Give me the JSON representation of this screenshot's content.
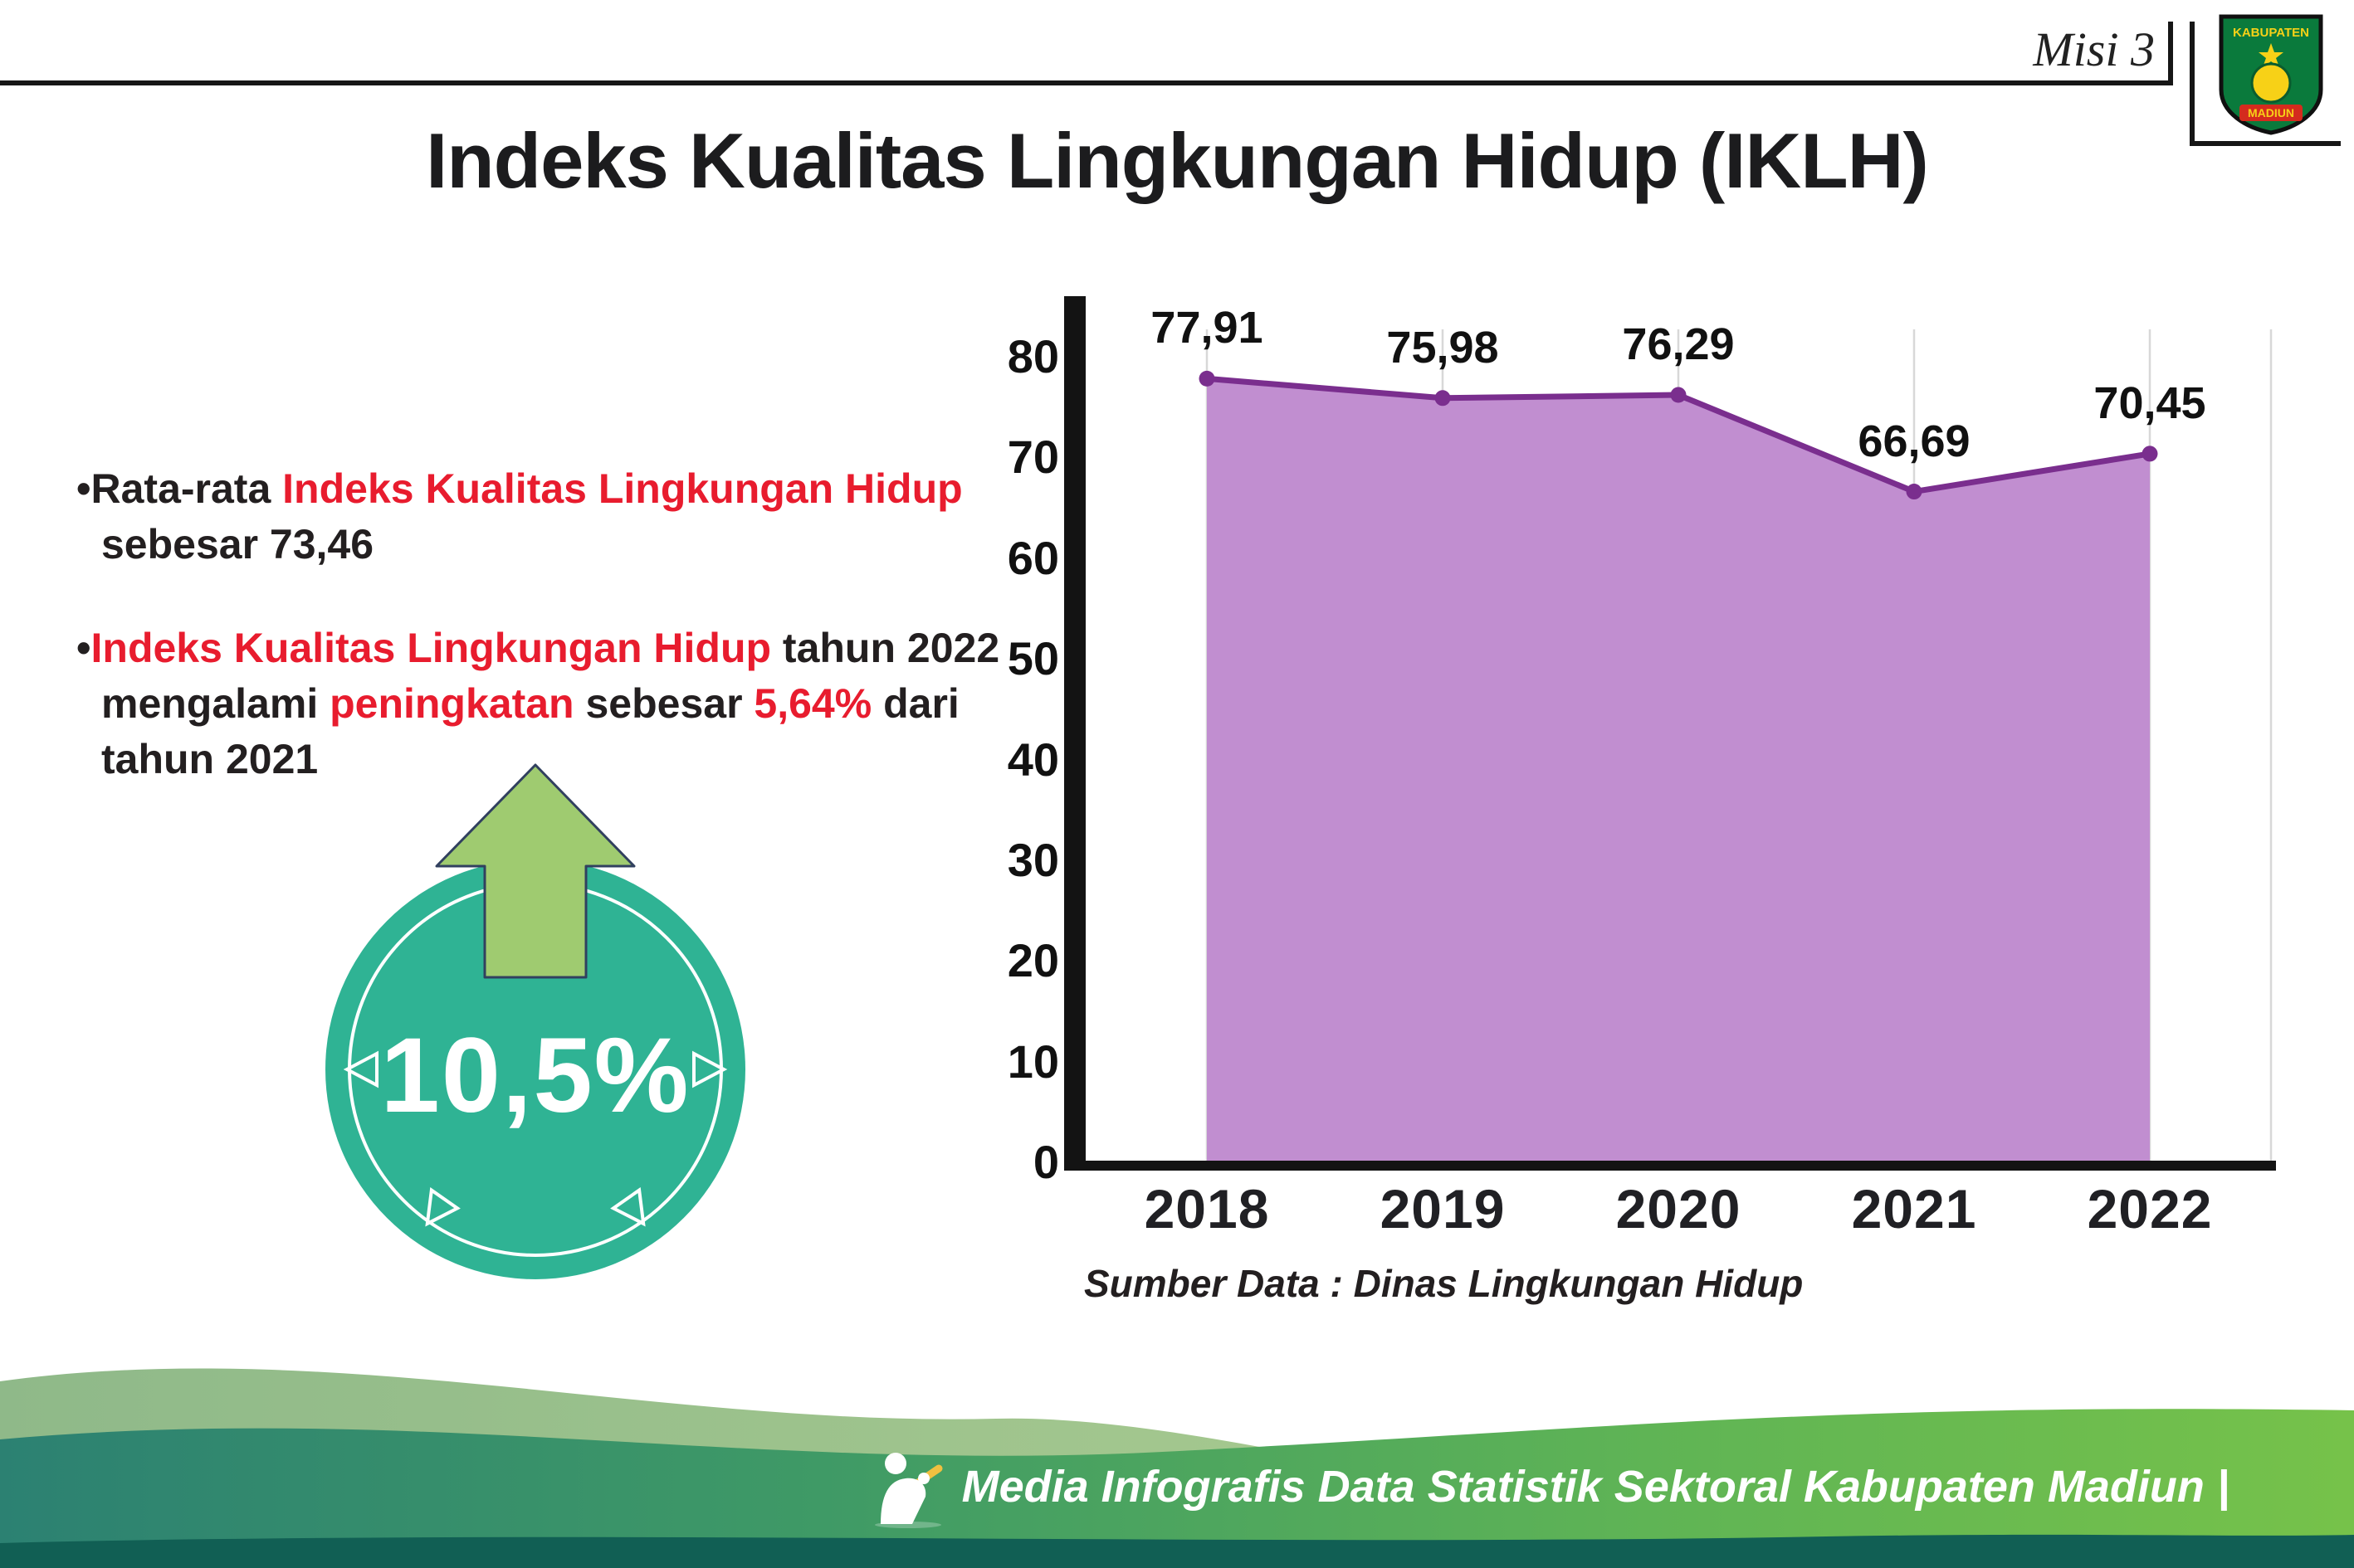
{
  "header": {
    "misi": "Misi 3",
    "title": "Indeks Kualitas Lingkungan Hidup (IKLH)"
  },
  "logo": {
    "line1": "KABUPATEN",
    "line2": "MADIUN"
  },
  "bullets": {
    "mark": "•",
    "b1": {
      "s1": "Rata-rata ",
      "s2": "Indeks Kualitas Lingkungan Hidup",
      "s3": " sebesar 73,46"
    },
    "b2": {
      "s1": "Indeks Kualitas Lingkungan Hidup",
      "s2": " tahun 2022 mengalami ",
      "s3": "peningkatan",
      "s4": " sebesar ",
      "s5": "5,64%",
      "s6": " dari tahun 2021"
    }
  },
  "badge": {
    "value": "10,5%"
  },
  "chart_data": {
    "type": "area",
    "categories": [
      "2018",
      "2019",
      "2020",
      "2021",
      "2022"
    ],
    "values": [
      77.91,
      75.98,
      76.29,
      66.69,
      70.45
    ],
    "value_labels": [
      "77,91",
      "75,98",
      "76,29",
      "66,69",
      "70,45"
    ],
    "ylim": [
      0,
      80
    ],
    "yticks": [
      0,
      10,
      20,
      30,
      40,
      50,
      60,
      70,
      80
    ],
    "grid": "vertical-light",
    "legend": "none",
    "line_color": "#7a2e8e",
    "fill_color": "#c18ed0",
    "source": "Sumber Data : Dinas Lingkungan Hidup"
  },
  "footer": {
    "text": "Media Infografis Data Statistik Sektoral Kabupaten Madiun |"
  },
  "colors": {
    "teal_badge": "#2fb394",
    "arrow_green": "#9fcb70",
    "highlight_red": "#e81c2e"
  }
}
